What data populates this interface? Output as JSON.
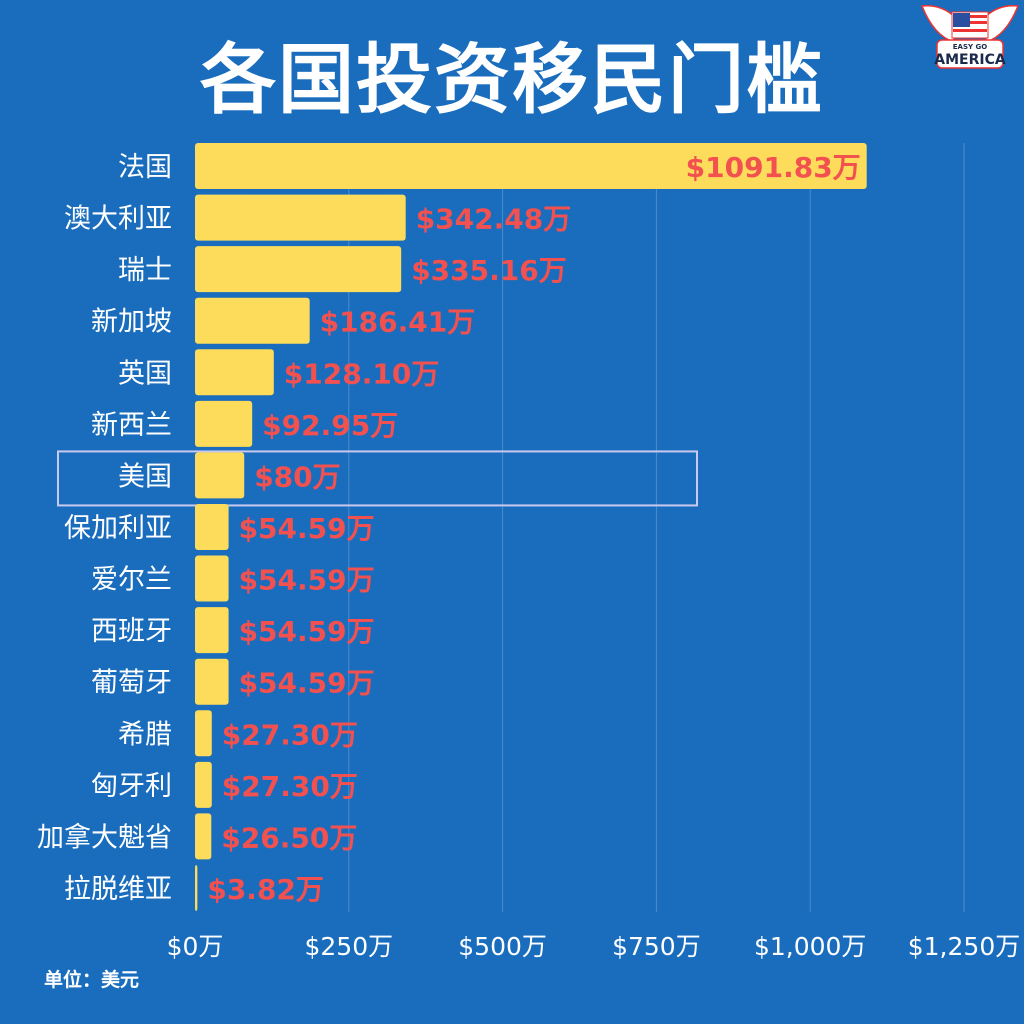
{
  "title": "各国投资移民门槛",
  "logo": {
    "line1": "EASY GO",
    "line2": "AMERICA"
  },
  "unit_label": "单位：美元",
  "colors": {
    "background": "#1a6dbd",
    "bar": "#fddc5c",
    "value_label": "#f2514f",
    "highlight_border": "#c9c9f0"
  },
  "chart_data": {
    "type": "bar",
    "orientation": "horizontal",
    "title": "各国投资移民门槛",
    "categories": [
      "法国",
      "澳大利亚",
      "瑞士",
      "新加坡",
      "英国",
      "新西兰",
      "美国",
      "保加利亚",
      "爱尔兰",
      "西班牙",
      "葡萄牙",
      "希腊",
      "匈牙利",
      "加拿大魁省",
      "拉脱维亚"
    ],
    "values": [
      1091.83,
      342.48,
      335.16,
      186.41,
      128.1,
      92.95,
      80,
      54.59,
      54.59,
      54.59,
      54.59,
      27.3,
      27.3,
      26.5,
      3.82
    ],
    "value_labels": [
      "$1091.83万",
      "$342.48万",
      "$335.16万",
      "$186.41万",
      "$128.10万",
      "$92.95万",
      "$80万",
      "$54.59万",
      "$54.59万",
      "$54.59万",
      "$54.59万",
      "$27.30万",
      "$27.30万",
      "$26.50万",
      "$3.82万"
    ],
    "highlighted": "美国",
    "xlim": [
      0,
      1250
    ],
    "xticks": [
      0,
      250,
      500,
      750,
      1000,
      1250
    ],
    "xtick_labels": [
      "$0万",
      "$250万",
      "$500万",
      "$750万",
      "$1,000万",
      "$1,250万"
    ],
    "grid": "vertical",
    "unit": "单位：美元"
  }
}
